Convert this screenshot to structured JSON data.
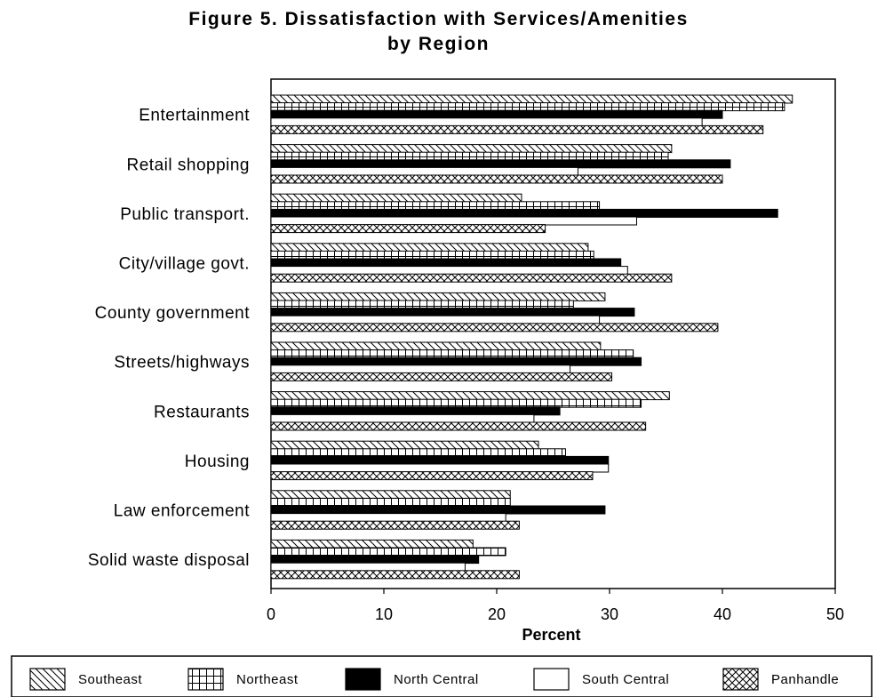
{
  "title_line1": "Figure 5. Dissatisfaction with Services/Amenities",
  "title_line2": "by Region",
  "chart_data": {
    "type": "bar",
    "orientation": "horizontal",
    "title": "Figure 5. Dissatisfaction with Services/Amenities by Region",
    "xlabel": "Percent",
    "ylabel": "",
    "xlim": [
      0,
      50
    ],
    "xticks": [
      0,
      10,
      20,
      30,
      40,
      50
    ],
    "grid": false,
    "legend_position": "bottom",
    "categories": [
      "Entertainment",
      "Retail shopping",
      "Public transport.",
      "City/village govt.",
      "County government",
      "Streets/highways",
      "Restaurants",
      "Housing",
      "Law enforcement",
      "Solid waste disposal"
    ],
    "series": [
      {
        "name": "Southeast",
        "pattern": "diagonal",
        "values": [
          46.2,
          35.5,
          22.2,
          28.1,
          29.6,
          29.2,
          35.3,
          23.7,
          21.2,
          17.9
        ]
      },
      {
        "name": "Northeast",
        "pattern": "grid",
        "values": [
          45.5,
          35.2,
          29.1,
          28.6,
          26.8,
          32.1,
          32.8,
          26.1,
          21.2,
          20.8
        ]
      },
      {
        "name": "North Central",
        "pattern": "solid",
        "values": [
          40.0,
          40.7,
          44.9,
          31.0,
          32.2,
          32.8,
          25.6,
          29.9,
          29.6,
          18.4
        ]
      },
      {
        "name": "South Central",
        "pattern": "open",
        "values": [
          38.2,
          27.2,
          32.4,
          31.6,
          29.1,
          26.5,
          23.3,
          29.9,
          20.8,
          17.2
        ]
      },
      {
        "name": "Panhandle",
        "pattern": "crosshatch",
        "values": [
          43.6,
          40.0,
          24.3,
          35.5,
          39.6,
          30.2,
          33.2,
          28.5,
          22.0,
          22.0
        ]
      }
    ]
  }
}
